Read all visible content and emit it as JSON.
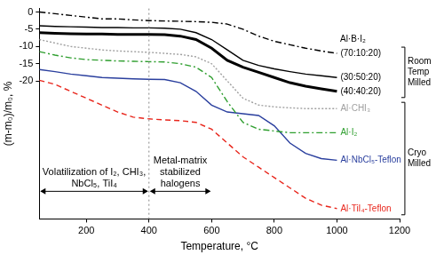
{
  "chart_data": {
    "type": "line",
    "x_label": "Temperature, °C",
    "y_label": "(m-m₀)/m₀, %",
    "x": [
      50,
      100,
      150,
      200,
      250,
      300,
      350,
      400,
      450,
      500,
      550,
      600,
      650,
      700,
      750,
      800,
      850,
      900,
      950,
      1000
    ],
    "xlim": [
      50,
      1200
    ],
    "xticks": [
      200,
      400,
      600,
      800,
      1000,
      1200
    ],
    "ylim": [
      -60,
      1
    ],
    "yticks": [
      0,
      -5,
      -10,
      -15,
      -20
    ],
    "grid": false,
    "series": [
      {
        "name": "(70:10:20)",
        "color": "#000000",
        "line_style": "dash-dot",
        "values": [
          0,
          -0.5,
          -1,
          -1.5,
          -2,
          -2,
          -2.3,
          -2.5,
          -2.6,
          -2.7,
          -2.8,
          -3,
          -3.5,
          -5,
          -7,
          -8.5,
          -9.5,
          -10.5,
          -11.3,
          -12
        ]
      },
      {
        "name": "(30:50:20)",
        "color": "#000000",
        "line_style": "solid",
        "values": [
          -4,
          -4.2,
          -4.3,
          -4.4,
          -4.5,
          -4.5,
          -4.6,
          -4.6,
          -4.7,
          -5,
          -6,
          -8,
          -11,
          -14,
          -15.5,
          -16.5,
          -17.3,
          -18,
          -18.5,
          -19
        ]
      },
      {
        "name": "(40:40:20)",
        "color": "#000000",
        "line_style": "bold",
        "values": [
          -6,
          -6.2,
          -6.3,
          -6.4,
          -6.4,
          -6.5,
          -6.5,
          -6.5,
          -6.6,
          -7,
          -8,
          -10.5,
          -14,
          -16,
          -17.5,
          -19,
          -20.5,
          -21.5,
          -22.3,
          -23
        ]
      },
      {
        "name": "Al·CHI₃",
        "color": "#a0a0a0",
        "line_style": "dotted",
        "values": [
          -8,
          -9,
          -10,
          -10.5,
          -11,
          -11.3,
          -11.5,
          -11.7,
          -12,
          -12.3,
          -13,
          -15,
          -20,
          -25,
          -27,
          -27.5,
          -27.8,
          -28,
          -28,
          -28
        ]
      },
      {
        "name": "Al·I₂",
        "color": "#2e9e2e",
        "line_style": "dash-dot",
        "values": [
          -11.5,
          -12.5,
          -13.3,
          -13.8,
          -14,
          -14.2,
          -14.3,
          -14.4,
          -14.5,
          -15,
          -16,
          -19,
          -26,
          -32,
          -34,
          -34.5,
          -35,
          -35,
          -35,
          -35
        ]
      },
      {
        "name": "Al·NbCl₅-Teflon",
        "color": "#2a3f9e",
        "line_style": "solid",
        "values": [
          -16.7,
          -17.3,
          -18,
          -18.5,
          -19,
          -19.2,
          -19.4,
          -19.5,
          -19.6,
          -20.5,
          -23,
          -27,
          -29,
          -29.5,
          -30,
          -33,
          -38,
          -41,
          -42.5,
          -43
        ]
      },
      {
        "name": "Al·TiI₄-Teflon",
        "color": "#e8261c",
        "line_style": "dashed",
        "values": [
          -19.8,
          -21,
          -23,
          -25,
          -27,
          -29,
          -30.5,
          -31,
          -31.3,
          -31.5,
          -32,
          -34,
          -38,
          -42,
          -45,
          -48,
          -51,
          -54,
          -56,
          -57
        ]
      }
    ],
    "reference_x": 400,
    "annotations": [
      {
        "text": "Al·B·I₂",
        "x": 1010,
        "y": -8
      },
      {
        "text": "Volatilization of I₂, CHI₃, NbCl₅, TiI₄",
        "x_from": 50,
        "x_to": 400,
        "y": -52
      },
      {
        "text": "Metal-matrix stabilized halogens",
        "x_from": 400,
        "x_to": 600,
        "y": -52
      }
    ],
    "groups": [
      {
        "text": "Room Temp Milled",
        "series": [
          "(70:10:20)",
          "(30:50:20)",
          "(40:40:20)"
        ]
      },
      {
        "text": "Cryo Milled",
        "series": [
          "Al·CHI₃",
          "Al·I₂",
          "Al·NbCl₅-Teflon",
          "Al·TiI₄-Teflon"
        ]
      }
    ]
  }
}
